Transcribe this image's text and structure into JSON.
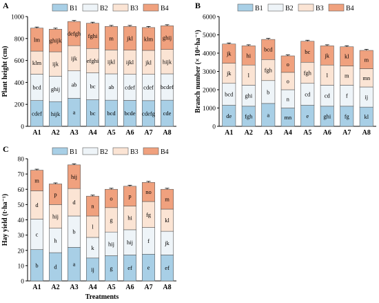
{
  "colors": {
    "B1": "#a8cfe6",
    "B2": "#eef4f8",
    "B3": "#fbe4d4",
    "B4": "#f0a17e"
  },
  "legend": [
    "B1",
    "B2",
    "B3",
    "B4"
  ],
  "chart_data": [
    {
      "panel": "A",
      "type": "bar",
      "stacked": true,
      "categories": [
        "A1",
        "A2",
        "A3",
        "A4",
        "A5",
        "A6",
        "A7",
        "A8"
      ],
      "ylabel": "Plant height (cm)",
      "ylim": [
        0,
        1000
      ],
      "yticks": [
        "0",
        "200",
        "400",
        "600",
        "800",
        "1000"
      ],
      "series": [
        {
          "name": "B1",
          "values": [
            235,
            225,
            255,
            242,
            238,
            236,
            234,
            238
          ],
          "labels": [
            "cdef",
            "hijk",
            "a",
            "bc",
            "bcd",
            "bcde",
            "cdefg",
            "cde"
          ]
        },
        {
          "name": "B2",
          "values": [
            240,
            232,
            250,
            245,
            240,
            238,
            240,
            240
          ],
          "labels": [
            "bcd",
            "ghij",
            "ab",
            "bc",
            "ab",
            "cdef",
            "cdef",
            "bcdef"
          ]
        },
        {
          "name": "B3",
          "values": [
            210,
            222,
            230,
            222,
            218,
            220,
            218,
            222
          ],
          "labels": [
            "klm",
            "ijk",
            "ijk",
            "efghi",
            "ijkl",
            "ijkl",
            "jkl",
            "hijk"
          ]
        },
        {
          "name": "B4",
          "values": [
            210,
            206,
            220,
            230,
            214,
            216,
            208,
            216
          ],
          "labels": [
            "lm",
            "ghijk",
            "defgh",
            "fghi",
            "m",
            "jkl",
            "klm",
            "ghij"
          ]
        }
      ]
    },
    {
      "panel": "B",
      "type": "bar",
      "stacked": true,
      "categories": [
        "A1",
        "A2",
        "A3",
        "A4",
        "A5",
        "A6",
        "A7",
        "A8"
      ],
      "ylabel": "Branch number (× 10⁴·ha⁻¹)",
      "ylim": [
        0,
        6000
      ],
      "yticks": [
        "0",
        "1000",
        "2000",
        "3000",
        "4000",
        "5000",
        "6000"
      ],
      "series": [
        {
          "name": "B1",
          "values": [
            1150,
            1100,
            1250,
            1000,
            1150,
            1100,
            1100,
            1050
          ],
          "labels": [
            "de",
            "fgh",
            "a",
            "mn",
            "e",
            "ghi",
            "fg",
            "kl"
          ]
        },
        {
          "name": "B2",
          "values": [
            1200,
            1150,
            1250,
            1000,
            1200,
            1150,
            1150,
            1100
          ],
          "labels": [
            "bcd",
            "ghi",
            "b",
            "n",
            "cd",
            "cd",
            "f",
            "ij"
          ]
        },
        {
          "name": "B3",
          "values": [
            1100,
            1100,
            1150,
            950,
            1150,
            1100,
            1050,
            1000
          ],
          "labels": [
            "jk",
            "l",
            "fgh",
            "o",
            "fgh",
            "l",
            "m",
            "mn"
          ]
        },
        {
          "name": "B4",
          "values": [
            1050,
            1050,
            1100,
            900,
            1150,
            1050,
            1050,
            1000
          ],
          "labels": [
            "jk",
            "hi",
            "bcd",
            "o",
            "bc",
            "jk",
            "kl",
            "m"
          ]
        }
      ]
    },
    {
      "panel": "C",
      "type": "bar",
      "stacked": true,
      "categories": [
        "A1",
        "A2",
        "A3",
        "A4",
        "A5",
        "A6",
        "A7",
        "A8"
      ],
      "xlabel": "Treatments",
      "ylabel": "Hay yield (t·ha⁻¹)",
      "ylim": [
        0,
        80
      ],
      "yticks": [
        "0",
        "10",
        "20",
        "30",
        "40",
        "50",
        "60",
        "70",
        "80"
      ],
      "series": [
        {
          "name": "B1",
          "values": [
            20.5,
            18.5,
            22,
            15,
            16.5,
            17,
            17.5,
            17
          ],
          "labels": [
            "b",
            "d",
            "a",
            "ij",
            "g",
            "ef",
            "e",
            "ef"
          ]
        },
        {
          "name": "B2",
          "values": [
            20,
            16,
            20.5,
            13.5,
            15.5,
            16.5,
            17.5,
            15.5
          ],
          "labels": [
            "c",
            "h",
            "b",
            "k",
            "hij",
            "hij",
            "f",
            "jk"
          ]
        },
        {
          "name": "B3",
          "values": [
            18.5,
            15.5,
            18,
            14,
            16,
            15.5,
            17,
            14.5
          ],
          "labels": [
            "d",
            "hij",
            "d",
            "l",
            "g",
            "hi",
            "fg",
            "kl"
          ]
        },
        {
          "name": "B4",
          "values": [
            13.5,
            13.5,
            15.5,
            13,
            12,
            13,
            12.5,
            13
          ],
          "labels": [
            "m",
            "p",
            "hij",
            "n",
            "o",
            "p",
            "no",
            "m"
          ]
        }
      ]
    }
  ]
}
